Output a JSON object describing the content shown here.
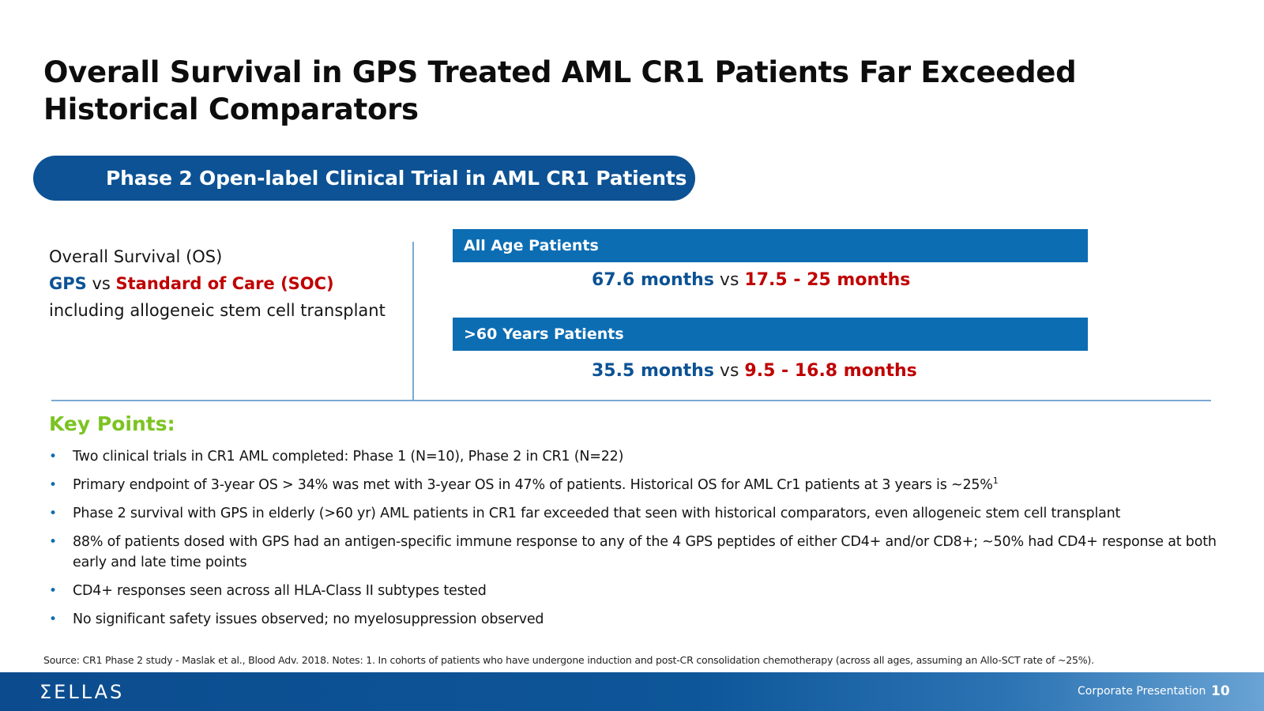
{
  "slide": {
    "title_line1": "Overall Survival in GPS Treated AML CR1 Patients Far Exceeded",
    "title_line2": "Historical Comparators",
    "banner": "Phase 2 Open-label Clinical Trial in AML CR1 Patients"
  },
  "os_summary": {
    "line1": "Overall Survival (OS)",
    "gps": "GPS",
    "vs": "vs",
    "soc": "Standard of Care (SOC)",
    "line3": "including allogeneic stem cell transplant"
  },
  "groups": [
    {
      "label": "All Age Patients",
      "gps_value": "67.6 months",
      "vs": "vs",
      "soc_value": "17.5 - 25 months"
    },
    {
      "label": ">60 Years Patients",
      "gps_value": "35.5 months",
      "vs": "vs",
      "soc_value": "9.5 - 16.8 months"
    }
  ],
  "key_points": {
    "heading": "Key Points:",
    "bullet_symbol": "•",
    "items": [
      "Two clinical trials in CR1 AML completed: Phase 1 (N=10), Phase 2 in CR1 (N=22)",
      "Primary endpoint of 3-year OS > 34% was met with 3-year OS in 47% of patients. Historical OS for AML Cr1 patients at 3 years is ~25%",
      "Phase 2 survival with GPS in elderly (>60 yr) AML patients in CR1 far exceeded that seen with historical comparators, even allogeneic stem cell transplant",
      "88% of patients dosed with GPS had an antigen-specific immune response to any of the 4 GPS peptides of either CD4+ and/or CD8+; ~50% had CD4+ response at both early and late time points",
      "CD4+ responses seen across all HLA-Class II subtypes tested",
      "No significant safety issues observed; no myelosuppression observed"
    ],
    "superscript": "1"
  },
  "source": "Source: CR1 Phase 2 study - Maslak et al., Blood Adv. 2018.  Notes: 1. In cohorts of patients who have undergone induction and post-CR consolidation chemotherapy (across all ages, assuming an Allo-SCT rate of ~25%).",
  "footer": {
    "logo": "ΣELLAS",
    "label": "Corporate Presentation",
    "page": "10"
  },
  "colors": {
    "brand_blue": "#0c5294",
    "bar_blue": "#0c6db3",
    "soc_red": "#c00000",
    "key_green": "#7cc322"
  }
}
